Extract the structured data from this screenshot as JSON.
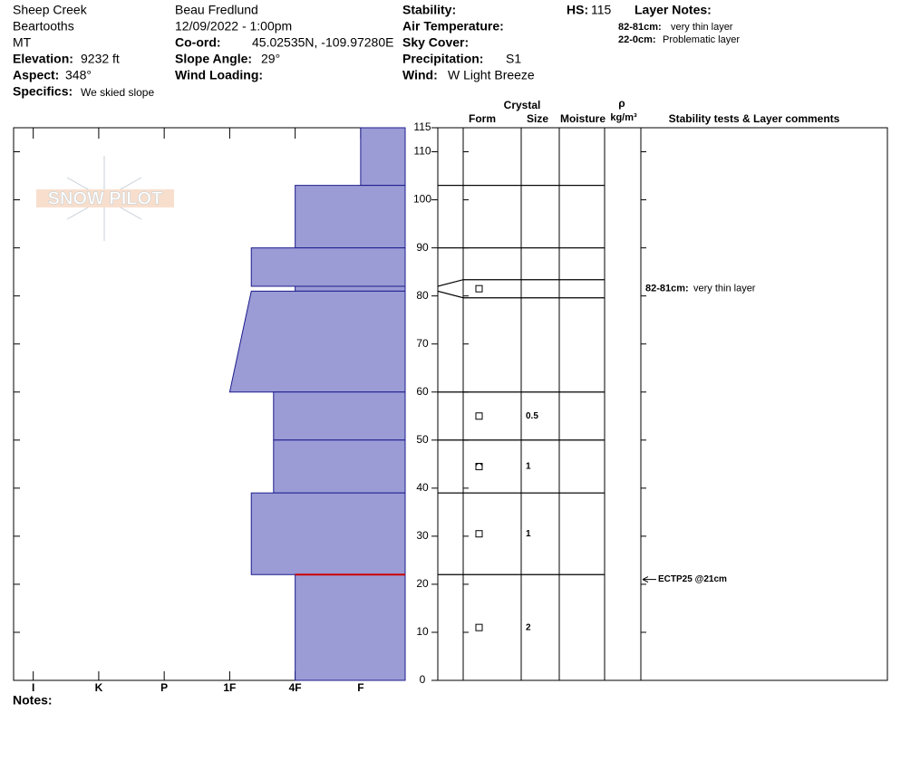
{
  "header": {
    "site": "Sheep Creek",
    "range": "Beartooths",
    "state": "MT",
    "elevation_label": "Elevation:",
    "elevation": "9232 ft",
    "aspect_label": "Aspect:",
    "aspect": "348°",
    "specifics_label": "Specifics:",
    "specifics": "We skied slope",
    "observer": "Beau  Fredlund",
    "datetime": "12/09/2022 - 1:00pm",
    "coord_label": "Co-ord:",
    "coord": "45.02535N, -109.97280E",
    "slope_label": "Slope Angle:",
    "slope": "29°",
    "wind_loading_label": "Wind Loading:",
    "stability_label": "Stability:",
    "air_temp_label": "Air Temperature:",
    "sky_label": "Sky Cover:",
    "precip_label": "Precipitation:",
    "precip": "S1",
    "wind_label": "Wind:",
    "wind": "W Light Breeze",
    "hs_label": "HS:",
    "hs": 115,
    "layer_notes_label": "Layer Notes:",
    "layer_notes": [
      {
        "range": "82-81cm:",
        "text": "very thin layer"
      },
      {
        "range": "22-0cm:",
        "text": "Problematic layer"
      }
    ],
    "notes_label": "Notes:"
  },
  "chart_data": {
    "type": "snow-profile",
    "watermark": "SNOW PILOT",
    "columns": {
      "crystal": "Crystal",
      "form": "Form",
      "size": "Size",
      "moisture": "Moisture",
      "density": "ρ",
      "density_unit": "kg/m³",
      "comments": "Stability tests & Layer comments"
    },
    "ylim": [
      0,
      115
    ],
    "yticks": [
      0,
      10,
      20,
      30,
      40,
      50,
      60,
      70,
      80,
      90,
      100,
      110,
      115
    ],
    "xlim": [
      6.3,
      0.32
    ],
    "xticks": [
      {
        "value": 6,
        "label": "I"
      },
      {
        "value": 5,
        "label": "K"
      },
      {
        "value": 4,
        "label": "P"
      },
      {
        "value": 3,
        "label": "1F"
      },
      {
        "value": 2,
        "label": "4F"
      },
      {
        "value": 1,
        "label": "F"
      }
    ],
    "fill": "#9b9bd6",
    "stroke": "#1c1c8c",
    "problem_color": "#cc0000",
    "layers": [
      {
        "top": 115,
        "bottom": 103,
        "hardness_top": 1,
        "hardness_bottom": 1
      },
      {
        "top": 103,
        "bottom": 90,
        "hardness_top": 2,
        "hardness_bottom": 2
      },
      {
        "top": 90,
        "bottom": 82,
        "hardness_top": 2.67,
        "hardness_bottom": 2.67
      },
      {
        "top": 82,
        "bottom": 81,
        "hardness_top": 2,
        "hardness_bottom": 2,
        "form": "FC",
        "comment_range": "82-81cm:",
        "comment": "very thin layer"
      },
      {
        "top": 81,
        "bottom": 60,
        "hardness_top": 2.67,
        "hardness_bottom": 3
      },
      {
        "top": 60,
        "bottom": 50,
        "hardness_top": 2.33,
        "hardness_bottom": 2.33,
        "form": "FC",
        "size": 0.5
      },
      {
        "top": 50,
        "bottom": 39,
        "hardness_top": 2.33,
        "hardness_bottom": 2.33,
        "form": "FCxr",
        "size": 1
      },
      {
        "top": 39,
        "bottom": 22,
        "hardness_top": 2.67,
        "hardness_bottom": 2.67,
        "form": "FC",
        "size": 1
      },
      {
        "top": 22,
        "bottom": 0,
        "hardness_top": 2,
        "hardness_bottom": 2,
        "form": "FC",
        "size": 2,
        "problematic": true
      }
    ],
    "tests": [
      {
        "label": "ECTP25 @21cm",
        "depth": 21
      }
    ]
  }
}
